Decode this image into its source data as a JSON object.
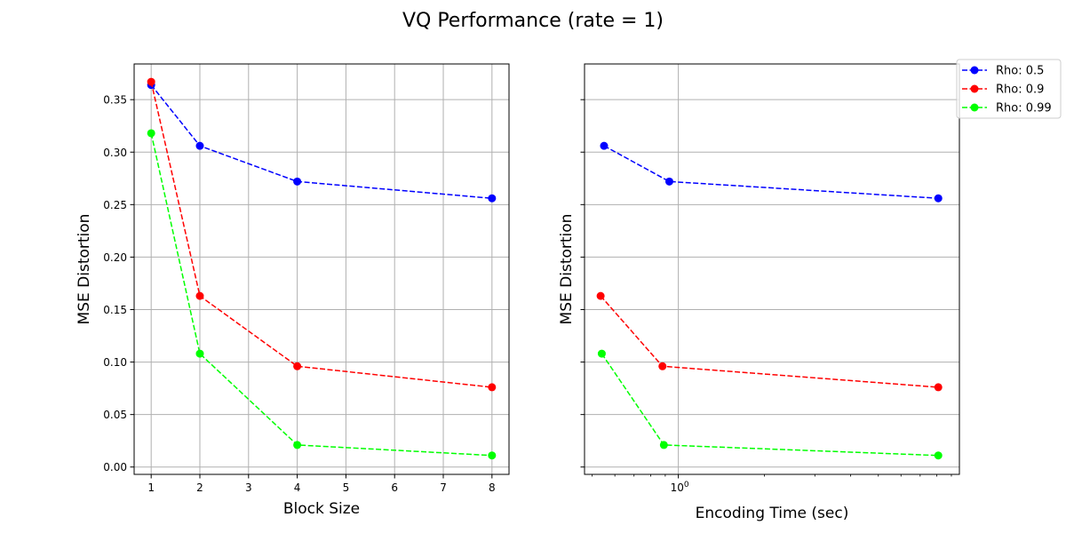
{
  "suptitle": "VQ Performance (rate = 1)",
  "colors": {
    "Rho: 0.5": "#0000ff",
    "Rho: 0.9": "#ff0000",
    "Rho: 0.99": "#00ff00"
  },
  "legend": {
    "placement": "upper-right-outside",
    "entries": [
      "Rho: 0.5",
      "Rho: 0.9",
      "Rho: 0.99"
    ]
  },
  "chart_data": [
    {
      "type": "line",
      "xscale": "linear",
      "xlabel": "Block Size",
      "ylabel": "MSE Distortion",
      "xlim": [
        0.65,
        8.35
      ],
      "ylim": [
        -0.007,
        0.384
      ],
      "xticks": [
        1,
        2,
        3,
        4,
        5,
        6,
        7,
        8
      ],
      "xtick_labels": [
        "1",
        "2",
        "3",
        "4",
        "5",
        "6",
        "7",
        "8"
      ],
      "yticks": [
        0.0,
        0.05,
        0.1,
        0.15,
        0.2,
        0.25,
        0.3,
        0.35
      ],
      "ytick_labels": [
        "0.00",
        "0.05",
        "0.10",
        "0.15",
        "0.20",
        "0.25",
        "0.30",
        "0.35"
      ],
      "grid": true,
      "series": [
        {
          "name": "Rho: 0.5",
          "x": [
            1,
            2,
            4,
            8
          ],
          "y": [
            0.364,
            0.306,
            0.272,
            0.256
          ]
        },
        {
          "name": "Rho: 0.9",
          "x": [
            1,
            2,
            4,
            8
          ],
          "y": [
            0.367,
            0.163,
            0.096,
            0.076
          ]
        },
        {
          "name": "Rho: 0.99",
          "x": [
            1,
            2,
            4,
            8
          ],
          "y": [
            0.318,
            0.108,
            0.021,
            0.011
          ]
        }
      ]
    },
    {
      "type": "line",
      "xscale": "log",
      "xlabel": "Encoding Time (sec)",
      "ylabel": "MSE Distortion",
      "xlim": [
        0.47,
        9.6
      ],
      "ylim": [
        -0.007,
        0.384
      ],
      "xticks": [
        1
      ],
      "xtick_labels": [
        "10"
      ],
      "xtick_exponents": [
        "0"
      ],
      "yticks": [
        0.0,
        0.05,
        0.1,
        0.15,
        0.2,
        0.25,
        0.3,
        0.35
      ],
      "ytick_labels": [],
      "grid": true,
      "series": [
        {
          "name": "Rho: 0.5",
          "x": [
            0.55,
            0.93,
            8.1
          ],
          "y": [
            0.306,
            0.272,
            0.256
          ]
        },
        {
          "name": "Rho: 0.9",
          "x": [
            0.535,
            0.88,
            8.1
          ],
          "y": [
            0.163,
            0.096,
            0.076
          ]
        },
        {
          "name": "Rho: 0.99",
          "x": [
            0.54,
            0.89,
            8.1
          ],
          "y": [
            0.108,
            0.021,
            0.011
          ]
        }
      ]
    }
  ]
}
